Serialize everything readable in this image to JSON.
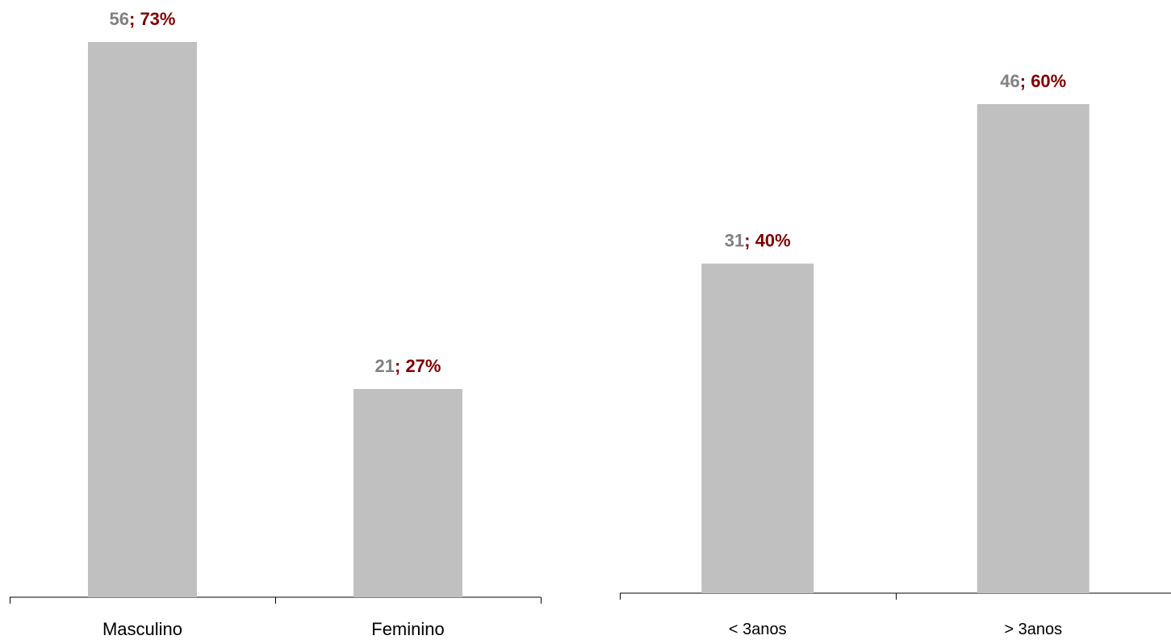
{
  "chart_data": [
    {
      "type": "bar",
      "categories": [
        "Masculino",
        "Feminino"
      ],
      "values": [
        56,
        21
      ],
      "percentages": [
        "73%",
        "27%"
      ],
      "ylim": [
        0,
        56
      ],
      "grid": false,
      "colors": {
        "bar": "#c0c0c0",
        "count_label": "#808080",
        "percent_label": "#800000",
        "axis": "#000000"
      }
    },
    {
      "type": "bar",
      "categories": [
        "< 3anos",
        "> 3anos"
      ],
      "values": [
        31,
        46
      ],
      "percentages": [
        "40%",
        "60%"
      ],
      "ylim": [
        0,
        46
      ],
      "grid": false,
      "colors": {
        "bar": "#c0c0c0",
        "count_label": "#808080",
        "percent_label": "#800000",
        "axis": "#000000"
      }
    }
  ]
}
